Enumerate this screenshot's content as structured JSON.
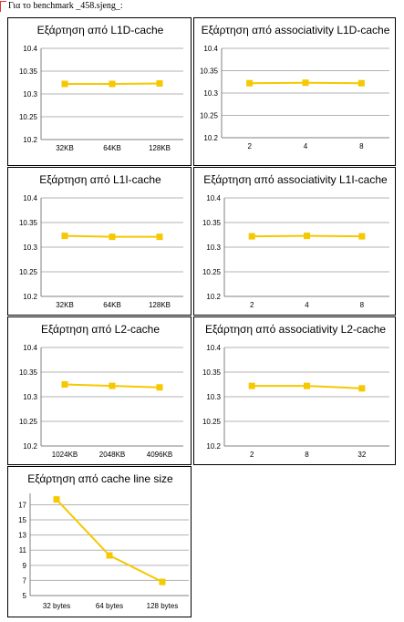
{
  "header": {
    "text": "Για το benchmark _458.sjeng_:"
  },
  "colors": {
    "series": "#f5c800",
    "grid": "#b3b3b3",
    "axis": "#808080"
  },
  "chart_data": [
    {
      "type": "line",
      "title": "Εξάρτηση από L1D-cache",
      "categories": [
        "32KB",
        "64KB",
        "128KB"
      ],
      "values": [
        10.322,
        10.322,
        10.323
      ],
      "yticks": [
        "10.4",
        "10.35",
        "10.3",
        "10.25",
        "10.2"
      ],
      "ylim": [
        10.2,
        10.4
      ]
    },
    {
      "type": "line",
      "title": "Εξάρτηση από associativity L1D-cache",
      "categories": [
        "2",
        "4",
        "8"
      ],
      "values": [
        10.322,
        10.323,
        10.322
      ],
      "yticks": [
        "10.4",
        "10.35",
        "10.3",
        "10.25",
        "10.2"
      ],
      "ylim": [
        10.2,
        10.4
      ]
    },
    {
      "type": "line",
      "title": "Εξάρτηση από L1I-cache",
      "categories": [
        "32KB",
        "64KB",
        "128KB"
      ],
      "values": [
        10.323,
        10.321,
        10.321
      ],
      "yticks": [
        "10.4",
        "10.35",
        "10.3",
        "10.25",
        "10.2"
      ],
      "ylim": [
        10.2,
        10.4
      ]
    },
    {
      "type": "line",
      "title": "Εξάρτηση από associativity L1I-cache",
      "categories": [
        "2",
        "4",
        "8"
      ],
      "values": [
        10.322,
        10.323,
        10.322
      ],
      "yticks": [
        "10.4",
        "10.35",
        "10.3",
        "10.25",
        "10.2"
      ],
      "ylim": [
        10.2,
        10.4
      ]
    },
    {
      "type": "line",
      "title": "Εξάρτηση από L2-cache",
      "categories": [
        "1024KB",
        "2048KB",
        "4096KB"
      ],
      "values": [
        10.325,
        10.322,
        10.319
      ],
      "yticks": [
        "10.4",
        "10.35",
        "10.3",
        "10.25",
        "10.2"
      ],
      "ylim": [
        10.2,
        10.4
      ]
    },
    {
      "type": "line",
      "title": "Εξάρτηση από associativity L2-cache",
      "categories": [
        "2",
        "8",
        "32"
      ],
      "values": [
        10.322,
        10.322,
        10.317
      ],
      "yticks": [
        "10.4",
        "10.35",
        "10.3",
        "10.25",
        "10.2"
      ],
      "ylim": [
        10.2,
        10.4
      ]
    },
    {
      "type": "line",
      "title": "Εξάρτηση από cache line size",
      "categories": [
        "32 bytes",
        "64 bytes",
        "128 bytes"
      ],
      "values": [
        17.7,
        10.3,
        6.8
      ],
      "yticks": [
        "17",
        "15",
        "13",
        "11",
        "9",
        "7",
        "5"
      ],
      "ylim": [
        5,
        18.5
      ]
    }
  ]
}
